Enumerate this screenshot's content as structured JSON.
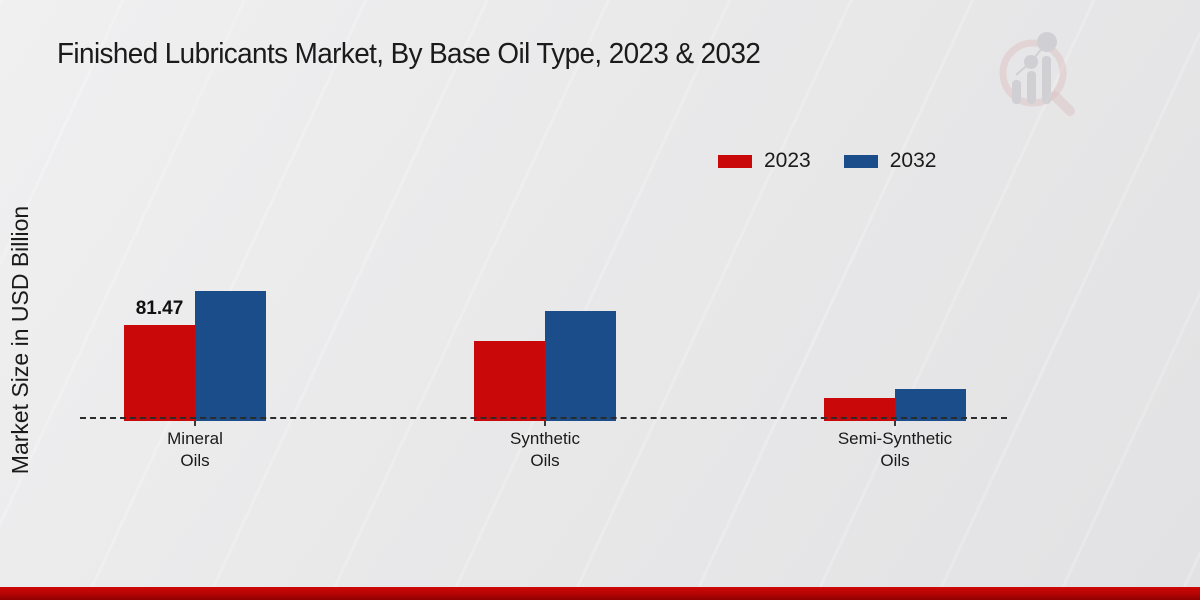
{
  "page": {
    "title": "Finished Lubricants Market, By Base Oil Type, 2023 & 2032"
  },
  "colors": {
    "series_2023": "#c90909",
    "series_2032": "#1a4d8a",
    "footer_red": "#b30404",
    "background": "#e9e9ea",
    "text": "#1b1b1b"
  },
  "legend": {
    "items": [
      {
        "label": "2023",
        "color": "#c90909"
      },
      {
        "label": "2032",
        "color": "#1a4d8a"
      }
    ]
  },
  "logo_icon": "bar-chart-magnifier-watermark",
  "chart_data": {
    "type": "bar",
    "title": "Finished Lubricants Market, By Base Oil Type, 2023 & 2032",
    "xlabel": "",
    "ylabel": "Market Size in USD Billion",
    "categories": [
      "Mineral Oils",
      "Synthetic Oils",
      "Semi-Synthetic Oils"
    ],
    "tick_labels": [
      "Mineral\nOils",
      "Synthetic\nOils",
      "Semi-Synthetic\nOils"
    ],
    "series": [
      {
        "name": "2023",
        "color": "#c90909",
        "values": [
          81.47,
          67.5,
          18.2
        ]
      },
      {
        "name": "2032",
        "color": "#1a4d8a",
        "values": [
          111.0,
          93.5,
          26.0
        ]
      }
    ],
    "annotations": [
      {
        "category_index": 0,
        "series_index": 0,
        "text": "81.47"
      }
    ],
    "ylim": [
      0,
      140
    ],
    "grid": false,
    "baseline_style": "dashed",
    "legend_position": "top-right",
    "value_precision_note": "only Mineral Oils 2023 bar carries a printed data label; other values estimated from bar heights"
  }
}
